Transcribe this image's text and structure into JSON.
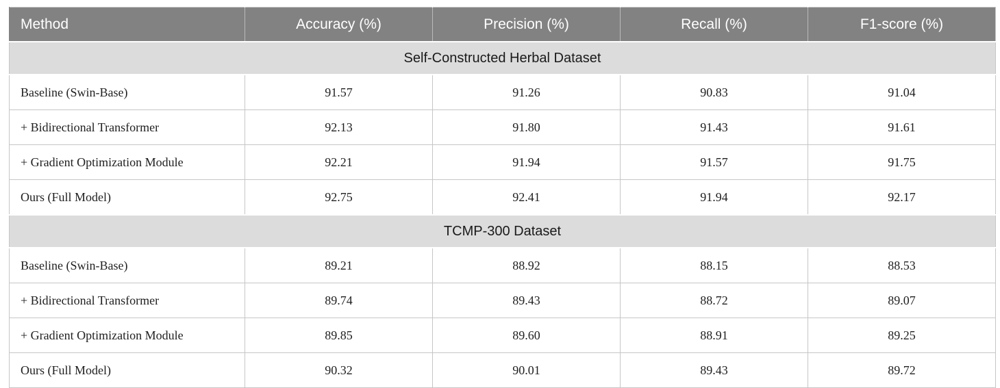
{
  "table": {
    "columns": [
      "Method",
      "Accuracy (%)",
      "Precision (%)",
      "Recall (%)",
      "F1-score (%)"
    ],
    "sections": [
      {
        "title": "Self-Constructed Herbal Dataset",
        "rows": [
          {
            "method": "Baseline (Swin-Base)",
            "values": [
              "91.57",
              "91.26",
              "90.83",
              "91.04"
            ]
          },
          {
            "method": "+ Bidirectional Transformer",
            "values": [
              "92.13",
              "91.80",
              "91.43",
              "91.61"
            ]
          },
          {
            "method": "+ Gradient Optimization Module",
            "values": [
              "92.21",
              "91.94",
              "91.57",
              "91.75"
            ]
          },
          {
            "method": "Ours (Full Model)",
            "values": [
              "92.75",
              "92.41",
              "91.94",
              "92.17"
            ]
          }
        ]
      },
      {
        "title": "TCMP-300 Dataset",
        "rows": [
          {
            "method": "Baseline (Swin-Base)",
            "values": [
              "89.21",
              "88.92",
              "88.15",
              "88.53"
            ]
          },
          {
            "method": "+ Bidirectional Transformer",
            "values": [
              "89.74",
              "89.43",
              "88.72",
              "89.07"
            ]
          },
          {
            "method": "+ Gradient Optimization Module",
            "values": [
              "89.85",
              "89.60",
              "88.91",
              "89.25"
            ]
          },
          {
            "method": "Ours (Full Model)",
            "values": [
              "90.32",
              "90.01",
              "89.43",
              "89.72"
            ]
          }
        ]
      }
    ],
    "colors": {
      "header_bg": "#828282",
      "header_text": "#ffffff",
      "section_bg": "#dcdcdc",
      "border": "#c6c6c6",
      "body_text": "#1f1f1f"
    }
  }
}
